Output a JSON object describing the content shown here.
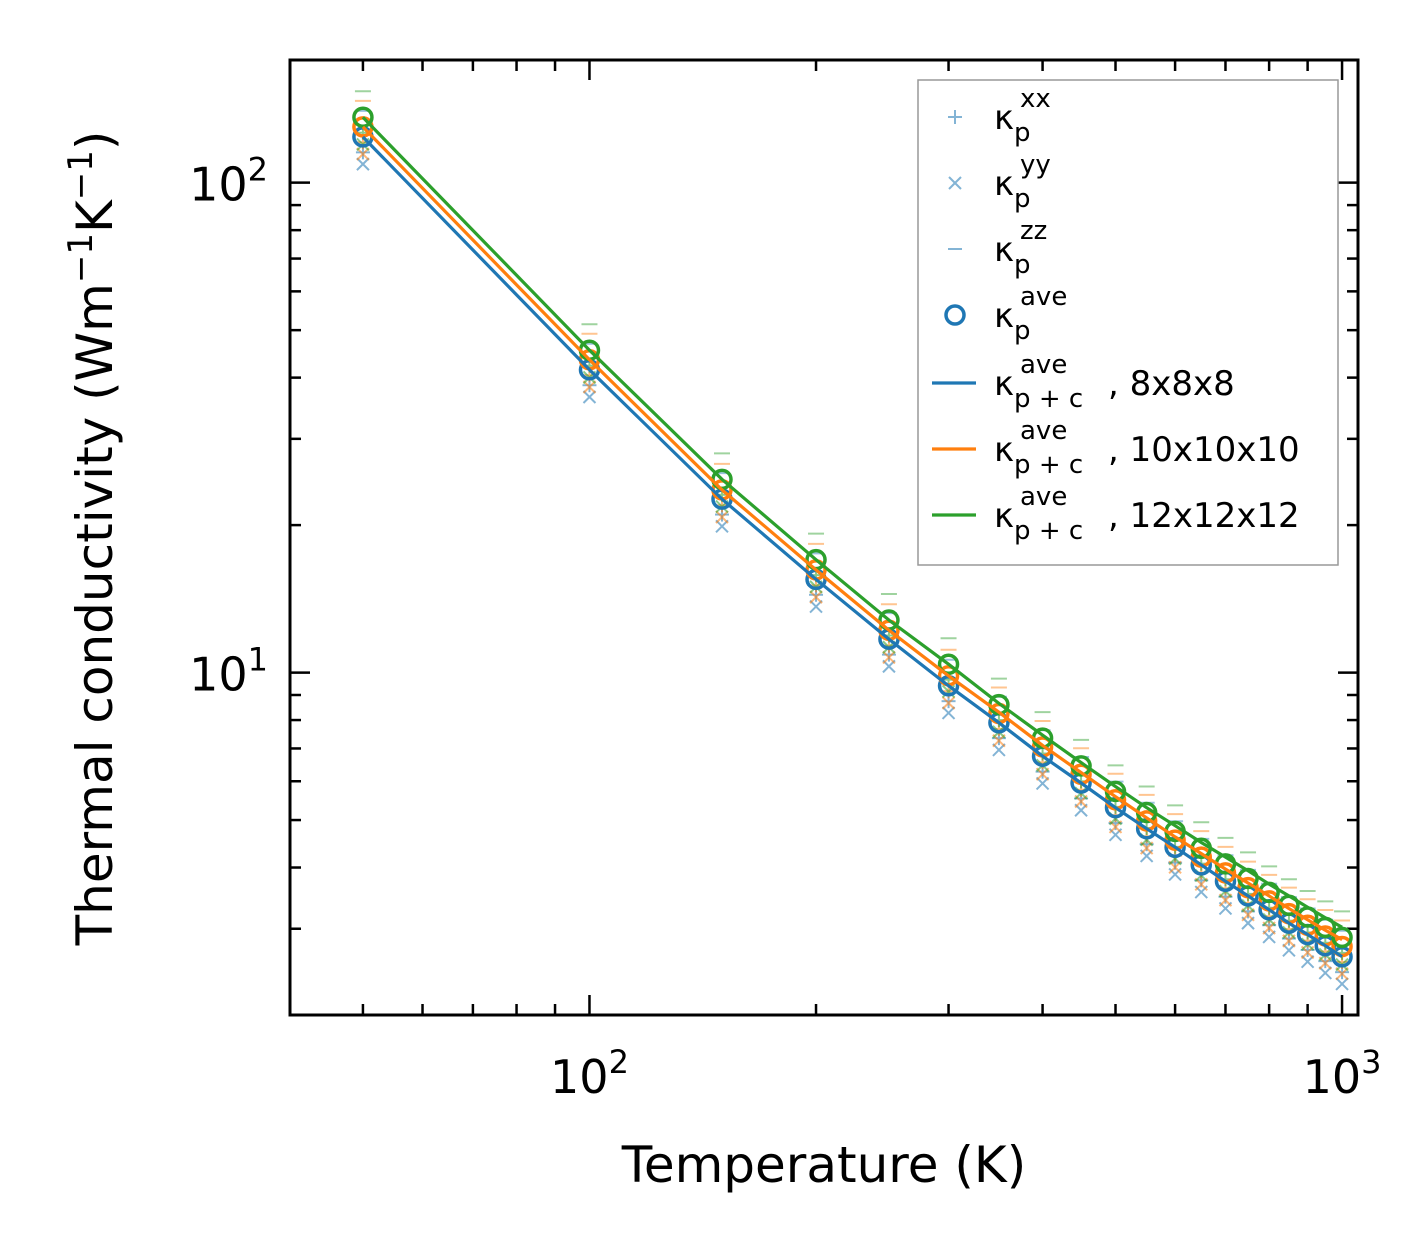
{
  "chart_data": {
    "type": "line",
    "xlabel": "Temperature (K)",
    "ylabel": "Thermal conductivity (Wm",
    "ylabel_unit_exp1": "−1",
    "ylabel_unit_mid": "K",
    "ylabel_unit_exp2": "−1",
    "ylabel_unit_close": ")",
    "xscale": "log",
    "yscale": "log",
    "xlim": [
      40,
      1050
    ],
    "ylim": [
      2.0,
      178
    ],
    "x_ticks": [
      {
        "value": 100,
        "base": "10",
        "exp": "2"
      },
      {
        "value": 1000,
        "base": "10",
        "exp": "3"
      }
    ],
    "y_ticks": [
      {
        "value": 10,
        "base": "10",
        "exp": "1"
      },
      {
        "value": 100,
        "base": "10",
        "exp": "2"
      }
    ],
    "legend_position": "top-right",
    "x": [
      50,
      100,
      150,
      200,
      250,
      300,
      350,
      400,
      450,
      500,
      550,
      600,
      650,
      700,
      750,
      800,
      850,
      900,
      950,
      1000
    ],
    "series": [
      {
        "name": "8x8x8",
        "color": "#1f77b4",
        "ave": [
          124,
          41.5,
          22.6,
          15.5,
          11.7,
          9.4,
          7.9,
          6.75,
          5.95,
          5.3,
          4.8,
          4.4,
          4.05,
          3.75,
          3.5,
          3.28,
          3.08,
          2.92,
          2.77,
          2.63
        ],
        "line": [
          124,
          41.5,
          22.6,
          15.5,
          11.7,
          9.4,
          7.9,
          6.75,
          5.95,
          5.3,
          4.8,
          4.4,
          4.05,
          3.75,
          3.5,
          3.28,
          3.08,
          2.92,
          2.77,
          2.63
        ]
      },
      {
        "name": "10x10x10",
        "color": "#ff7f0e",
        "ave": [
          130,
          43.5,
          23.6,
          16.2,
          12.2,
          9.85,
          8.25,
          7.05,
          6.2,
          5.5,
          4.98,
          4.55,
          4.2,
          3.9,
          3.64,
          3.42,
          3.22,
          3.05,
          2.9,
          2.76
        ],
        "line": [
          130,
          43.5,
          23.6,
          16.2,
          12.2,
          9.85,
          8.3,
          7.1,
          6.25,
          5.58,
          5.05,
          4.62,
          4.27,
          3.97,
          3.72,
          3.5,
          3.3,
          3.13,
          2.98,
          2.85
        ]
      },
      {
        "name": "12x12x12",
        "color": "#2ca02c",
        "ave": [
          136,
          45.5,
          24.8,
          17.0,
          12.8,
          10.4,
          8.6,
          7.35,
          6.45,
          5.72,
          5.18,
          4.74,
          4.38,
          4.07,
          3.8,
          3.56,
          3.35,
          3.17,
          3.02,
          2.88
        ],
        "line": [
          136,
          45.5,
          24.8,
          17.0,
          12.8,
          10.4,
          8.65,
          7.45,
          6.55,
          5.85,
          5.3,
          4.87,
          4.5,
          4.2,
          3.94,
          3.7,
          3.5,
          3.32,
          3.16,
          3.02
        ]
      }
    ],
    "legend": [
      {
        "kind": "plus",
        "label": "κ",
        "sub": "p",
        "sup": "xx",
        "suffix": ""
      },
      {
        "kind": "cross",
        "label": "κ",
        "sub": "p",
        "sup": "yy",
        "suffix": ""
      },
      {
        "kind": "dash",
        "label": "κ",
        "sub": "p",
        "sup": "zz",
        "suffix": ""
      },
      {
        "kind": "circle",
        "label": "κ",
        "sub": "p",
        "sup": "ave",
        "suffix": ""
      },
      {
        "kind": "line",
        "color": "#1f77b4",
        "label": "κ",
        "sub": "p + c",
        "sup": "ave",
        "suffix": ", 8x8x8"
      },
      {
        "kind": "line",
        "color": "#ff7f0e",
        "label": "κ",
        "sub": "p + c",
        "sup": "ave",
        "suffix": ", 10x10x10"
      },
      {
        "kind": "line",
        "color": "#2ca02c",
        "label": "κ",
        "sub": "p + c",
        "sup": "ave",
        "suffix": ", 12x12x12"
      }
    ],
    "component_ratios": {
      "xx": 0.93,
      "yy": 0.88,
      "zz": 1.13
    }
  }
}
